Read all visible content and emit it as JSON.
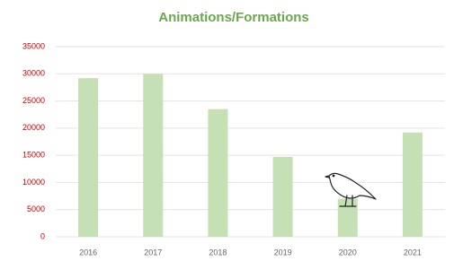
{
  "chart_data": {
    "type": "bar",
    "title": "Animations/Formations",
    "categories": [
      "2016",
      "2017",
      "2018",
      "2019",
      "2020",
      "2021"
    ],
    "values": [
      29200,
      30000,
      23500,
      14700,
      7000,
      19200
    ],
    "color": "#c5e0b4",
    "ylim": [
      0,
      35000
    ],
    "yticks": [
      0,
      5000,
      10000,
      15000,
      20000,
      25000,
      30000,
      35000
    ],
    "grid": true
  }
}
